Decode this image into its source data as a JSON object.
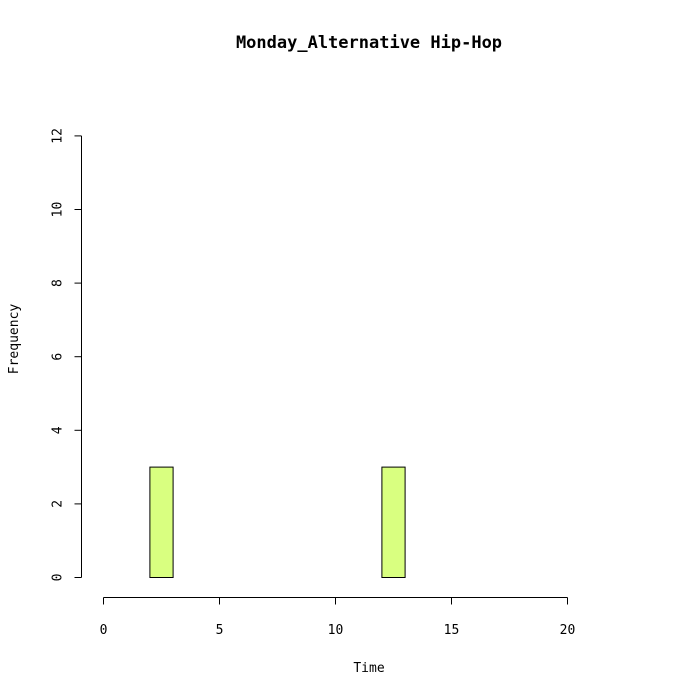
{
  "chart_data": {
    "type": "bar",
    "title": "Monday_Alternative Hip-Hop",
    "xlabel": "Time",
    "ylabel": "Frequency",
    "xlim": [
      0,
      24
    ],
    "ylim": [
      0,
      12
    ],
    "x_ticks": [
      0,
      5,
      10,
      15,
      20
    ],
    "y_ticks": [
      0,
      2,
      4,
      6,
      8,
      10,
      12
    ],
    "bin_width": 1,
    "bins": [
      {
        "start": 0,
        "count": 0
      },
      {
        "start": 1,
        "count": 0
      },
      {
        "start": 2,
        "count": 3
      },
      {
        "start": 3,
        "count": 0
      },
      {
        "start": 4,
        "count": 0
      },
      {
        "start": 5,
        "count": 0
      },
      {
        "start": 6,
        "count": 0
      },
      {
        "start": 7,
        "count": 0
      },
      {
        "start": 8,
        "count": 0
      },
      {
        "start": 9,
        "count": 0
      },
      {
        "start": 10,
        "count": 0
      },
      {
        "start": 11,
        "count": 0
      },
      {
        "start": 12,
        "count": 3
      },
      {
        "start": 13,
        "count": 0
      },
      {
        "start": 14,
        "count": 0
      },
      {
        "start": 15,
        "count": 0
      },
      {
        "start": 16,
        "count": 0
      },
      {
        "start": 17,
        "count": 0
      },
      {
        "start": 18,
        "count": 0
      },
      {
        "start": 19,
        "count": 0
      },
      {
        "start": 20,
        "count": 0
      },
      {
        "start": 21,
        "count": 0
      },
      {
        "start": 22,
        "count": 0
      },
      {
        "start": 23,
        "count": 0
      }
    ],
    "bar_color": "#d9ff80",
    "grid": false,
    "legend": "none"
  }
}
